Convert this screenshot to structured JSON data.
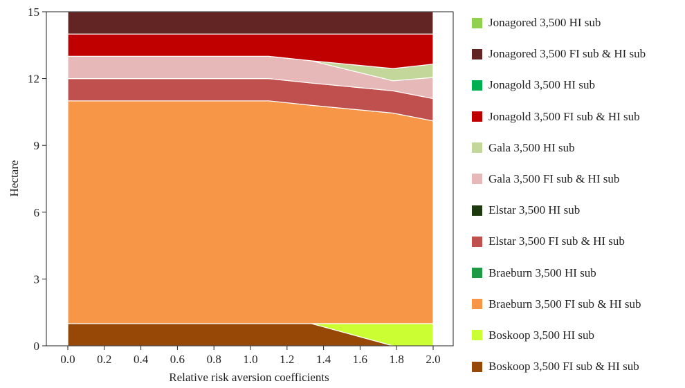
{
  "chart_data": {
    "type": "area",
    "stacked": true,
    "xlabel": "Relative risk aversion coefficients",
    "ylabel": "Hectare",
    "xlim": [
      0.0,
      2.0
    ],
    "ylim": [
      0,
      15
    ],
    "xticks": [
      "0.0",
      "0.2",
      "0.4",
      "0.6",
      "0.8",
      "1.0",
      "1.2",
      "1.4",
      "1.6",
      "1.8",
      "2.0"
    ],
    "yticks": [
      "0",
      "3",
      "6",
      "9",
      "12",
      "15"
    ],
    "x": [
      0.0,
      1.1,
      1.333,
      1.78,
      2.0
    ],
    "legend_position": "right",
    "series": [
      {
        "name": "Boskoop 3,500 FI sub & HI sub",
        "color": "#974706",
        "values": [
          1.0,
          1.0,
          1.0,
          0.0,
          0.0
        ]
      },
      {
        "name": "Boskoop 3,500 HI sub",
        "color": "#ccff33",
        "values": [
          0.0,
          0.0,
          0.0,
          1.0,
          1.0
        ]
      },
      {
        "name": "Braeburn 3,500 FI sub & HI sub",
        "color": "#f79646",
        "values": [
          10.0,
          10.0,
          9.8,
          9.45,
          9.1
        ]
      },
      {
        "name": "Braeburn 3,500 HI sub",
        "color": "#1e9a44",
        "values": [
          0,
          0,
          0,
          0,
          0
        ]
      },
      {
        "name": "Elstar 3,500 FI sub & HI sub",
        "color": "#c0504d",
        "values": [
          1.0,
          1.0,
          1.0,
          1.0,
          1.0
        ]
      },
      {
        "name": "Elstar 3,500 HI sub",
        "color": "#1c3a0d",
        "values": [
          0,
          0,
          0,
          0,
          0
        ]
      },
      {
        "name": "Gala 3,500 FI sub & HI sub",
        "color": "#e6b9b8",
        "values": [
          1.0,
          1.0,
          1.0,
          0.45,
          0.95
        ]
      },
      {
        "name": "Gala 3,500 HI sub",
        "color": "#c4d79b",
        "values": [
          0.0,
          0.0,
          0.0,
          0.55,
          0.6
        ]
      },
      {
        "name": "Jonagold 3,500 FI sub & HI sub",
        "color": "#c00000",
        "values": [
          1.0,
          1.0,
          1.2,
          1.55,
          1.35
        ]
      },
      {
        "name": "Jonagold 3,500 HI sub",
        "color": "#00b050",
        "values": [
          0,
          0,
          0,
          0,
          0
        ]
      },
      {
        "name": "Jonagored 3,500 FI sub & HI sub",
        "color": "#632523",
        "values": [
          1.0,
          1.0,
          1.0,
          1.0,
          1.0
        ]
      },
      {
        "name": "Jonagored 3,500 HI sub",
        "color": "#92d050",
        "values": [
          0.0,
          0.0,
          0.0,
          0.0,
          0.0
        ]
      }
    ]
  }
}
